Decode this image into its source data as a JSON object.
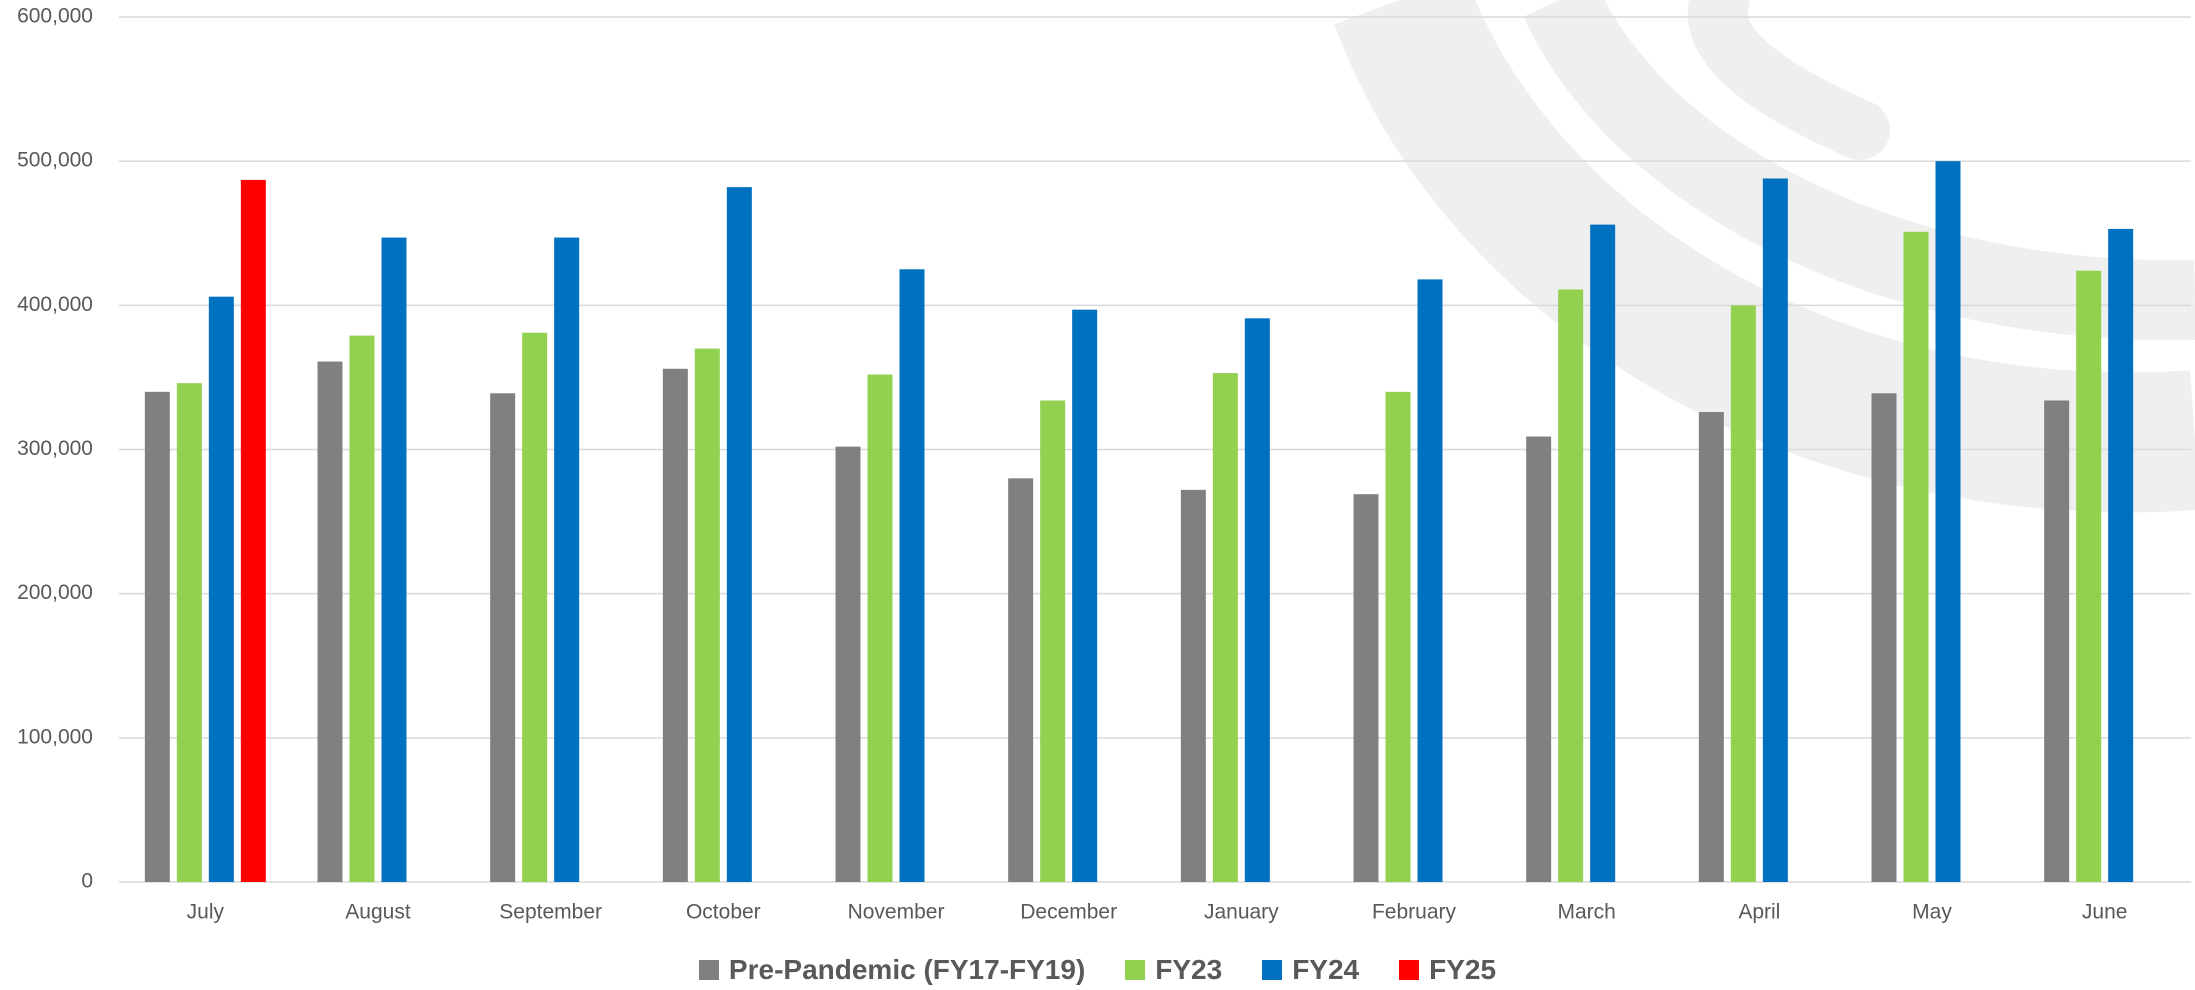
{
  "chart_data": {
    "type": "bar",
    "categories": [
      "July",
      "August",
      "September",
      "October",
      "November",
      "December",
      "January",
      "February",
      "March",
      "April",
      "May",
      "June"
    ],
    "series": [
      {
        "name": "Pre-Pandemic (FY17-FY19)",
        "color": "#808080",
        "values": [
          340000,
          361000,
          339000,
          356000,
          302000,
          280000,
          272000,
          269000,
          309000,
          326000,
          339000,
          334000
        ]
      },
      {
        "name": "FY23",
        "color": "#92d050",
        "values": [
          346000,
          379000,
          381000,
          370000,
          352000,
          334000,
          353000,
          340000,
          411000,
          400000,
          451000,
          424000
        ]
      },
      {
        "name": "FY24",
        "color": "#0070c0",
        "values": [
          406000,
          447000,
          447000,
          482000,
          425000,
          397000,
          391000,
          418000,
          456000,
          488000,
          500000,
          453000
        ]
      },
      {
        "name": "FY25",
        "color": "#ff0000",
        "values": [
          487000,
          null,
          null,
          null,
          null,
          null,
          null,
          null,
          null,
          null,
          null,
          null
        ]
      }
    ],
    "ylim": [
      0,
      600000
    ],
    "yticks": [
      {
        "value": 0,
        "label": "0"
      },
      {
        "value": 100000,
        "label": "100,000"
      },
      {
        "value": 200000,
        "label": "200,000"
      },
      {
        "value": 300000,
        "label": "300,000"
      },
      {
        "value": 400000,
        "label": "400,000"
      },
      {
        "value": 500000,
        "label": "500,000"
      },
      {
        "value": 600000,
        "label": "600,000"
      }
    ],
    "grid": true,
    "legend": "bottom"
  }
}
